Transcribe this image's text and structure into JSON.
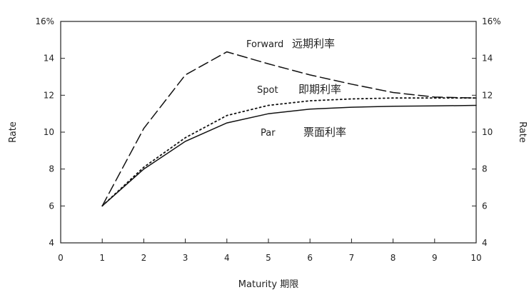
{
  "chart_data": {
    "type": "line",
    "xlabel": "Maturity 期限",
    "ylabel_left": "Rate",
    "ylabel_right": "Rate",
    "xlim": [
      0,
      10
    ],
    "ylim": [
      4,
      16
    ],
    "x_ticks": [
      "0",
      "1",
      "2",
      "3",
      "4",
      "5",
      "6",
      "7",
      "8",
      "9",
      "10"
    ],
    "y_ticks_left": [
      "4",
      "6",
      "8",
      "10",
      "12",
      "14",
      "16%"
    ],
    "y_ticks_right": [
      "4",
      "6",
      "8",
      "10",
      "12",
      "14",
      "16%"
    ],
    "grid": false,
    "series": [
      {
        "name": "Forward 远期利率",
        "style": "long-dash",
        "x": [
          1,
          2,
          3,
          4,
          5,
          6,
          7,
          8,
          9,
          10
        ],
        "values": [
          6.0,
          10.2,
          13.1,
          14.35,
          13.7,
          13.1,
          12.6,
          12.15,
          11.9,
          11.85
        ]
      },
      {
        "name": "Spot 即期利率",
        "style": "dotted",
        "x": [
          1,
          2,
          3,
          4,
          5,
          6,
          7,
          8,
          9,
          10
        ],
        "values": [
          6.0,
          8.1,
          9.7,
          10.9,
          11.45,
          11.7,
          11.8,
          11.85,
          11.85,
          11.85
        ]
      },
      {
        "name": "Par 票面利率",
        "style": "solid",
        "x": [
          1,
          2,
          3,
          4,
          5,
          6,
          7,
          8,
          9,
          10
        ],
        "values": [
          6.0,
          8.0,
          9.5,
          10.5,
          11.0,
          11.25,
          11.35,
          11.4,
          11.42,
          11.45
        ]
      }
    ],
    "annotations": [
      {
        "label": "Forward",
        "label_cn": "远期利率"
      },
      {
        "label": "Spot",
        "label_cn": "即期利率"
      },
      {
        "label": "Par",
        "label_cn": "票面利率"
      }
    ]
  }
}
